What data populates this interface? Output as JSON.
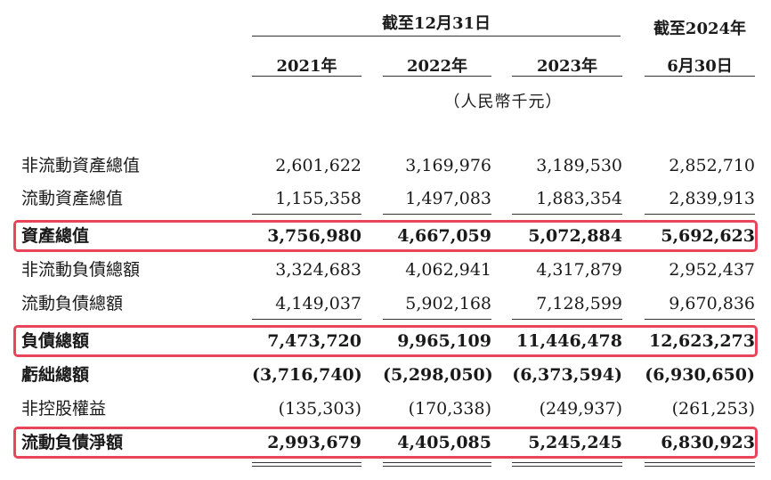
{
  "header": {
    "period_title": "截至12月31日",
    "last_col_line1": "截至2024年",
    "last_col_line2": "6月30日",
    "years": [
      "2021年",
      "2022年",
      "2023年"
    ],
    "unit": "（人民幣千元）"
  },
  "rows": [
    {
      "label": "非流動資產總值",
      "values": [
        "2,601,622",
        "3,169,976",
        "3,189,530",
        "2,852,710"
      ],
      "bold": false
    },
    {
      "label": "流動資產總值",
      "values": [
        "1,155,358",
        "1,497,083",
        "1,883,354",
        "2,839,913"
      ],
      "bold": false
    },
    {
      "label": "資產總值",
      "values": [
        "3,756,980",
        "4,667,059",
        "5,072,884",
        "5,692,623"
      ],
      "bold": true
    },
    {
      "label": "非流動負債總額",
      "values": [
        "3,324,683",
        "4,062,941",
        "4,317,879",
        "2,952,437"
      ],
      "bold": false
    },
    {
      "label": "流動負債總額",
      "values": [
        "4,149,037",
        "5,902,168",
        "7,128,599",
        "9,670,836"
      ],
      "bold": false
    },
    {
      "label": "負債總額",
      "values": [
        "7,473,720",
        "9,965,109",
        "11,446,478",
        "12,623,273"
      ],
      "bold": true
    },
    {
      "label": "虧絀總額",
      "values": [
        "(3,716,740)",
        "(5,298,050)",
        "(6,373,594)",
        "(6,930,650)"
      ],
      "bold": true
    },
    {
      "label": "非控股權益",
      "values": [
        "(135,303)",
        "(170,338)",
        "(249,937)",
        "(261,253)"
      ],
      "bold": false
    },
    {
      "label": "流動負債淨額",
      "values": [
        "2,993,679",
        "4,405,085",
        "5,245,245",
        "6,830,923"
      ],
      "bold": true
    }
  ],
  "highlight_color": "#e8445a"
}
